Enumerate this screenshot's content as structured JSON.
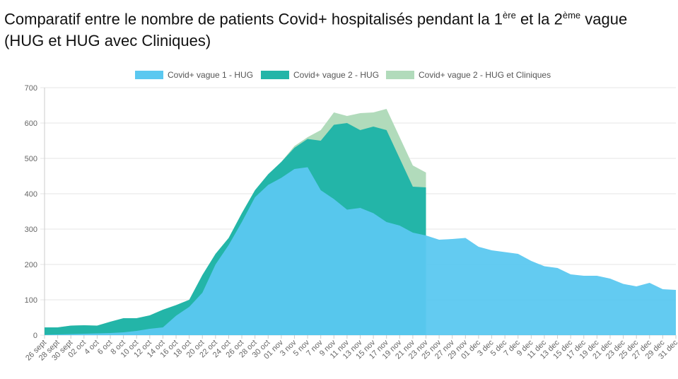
{
  "title": {
    "part1": "Comparatif entre le nombre de patients Covid+ hospitalisés pendant la 1",
    "sup1": "ère",
    "part2": " et la 2",
    "sup2": "ème",
    "part3": " vague (HUG et HUG avec Cliniques)"
  },
  "colors": {
    "vague1": "#5bc8f0",
    "vague2": "#23b5a8",
    "vague2_cliniques": "#b1dbbb",
    "grid": "#e6e6e6"
  },
  "chart_data": {
    "type": "area",
    "ylim": [
      0,
      700
    ],
    "yticks": [
      0,
      100,
      200,
      300,
      400,
      500,
      600,
      700
    ],
    "legend_position": "top-center",
    "grid": true,
    "x_labels": [
      "26 sept",
      "28 sept",
      "30 sept",
      "02 oct",
      "4 oct",
      "6 oct",
      "8 oct",
      "10 oct",
      "12 oct",
      "14 oct",
      "16 oct",
      "18 oct",
      "20 oct",
      "22 oct",
      "24 oct",
      "26 oct",
      "28 oct",
      "30 oct",
      "01 nov",
      "3 nov",
      "5 nov",
      "7 nov",
      "9 nov",
      "11 nov",
      "13 nov",
      "15 nov",
      "17 nov",
      "19 nov",
      "21 nov",
      "23 nov",
      "25 nov",
      "27 nov",
      "29 nov",
      "01 dec",
      "3 dec",
      "5 dec",
      "7 dec",
      "9 dec",
      "11 dec",
      "13 dec",
      "15 dec",
      "17 dec",
      "19 dec",
      "21 dec",
      "23 dec",
      "25 dec",
      "27 dec",
      "29 dec",
      "31 dec"
    ],
    "series": [
      {
        "name": "Covid+ vague 1 - HUG",
        "values": [
          1,
          2,
          3,
          4,
          5,
          6,
          8,
          12,
          18,
          22,
          55,
          80,
          120,
          200,
          255,
          320,
          390,
          425,
          445,
          470,
          475,
          410,
          385,
          355,
          360,
          345,
          320,
          310,
          290,
          282,
          270,
          272,
          275,
          250,
          240,
          235,
          230,
          210,
          195,
          190,
          172,
          168,
          168,
          160,
          145,
          138,
          148,
          130,
          128
        ]
      },
      {
        "name": "Covid+ vague 2 - HUG",
        "values": [
          22,
          22,
          27,
          28,
          27,
          38,
          48,
          48,
          56,
          72,
          85,
          100,
          170,
          230,
          275,
          345,
          410,
          455,
          490,
          530,
          555,
          550,
          595,
          600,
          580,
          590,
          580,
          500,
          420,
          418
        ]
      },
      {
        "name": "Covid+ vague 2 - HUG et Cliniques",
        "values": [
          22,
          22,
          27,
          28,
          27,
          38,
          48,
          48,
          56,
          72,
          85,
          100,
          170,
          230,
          275,
          345,
          410,
          455,
          490,
          535,
          560,
          580,
          630,
          620,
          628,
          630,
          640,
          560,
          480,
          460
        ]
      }
    ]
  }
}
